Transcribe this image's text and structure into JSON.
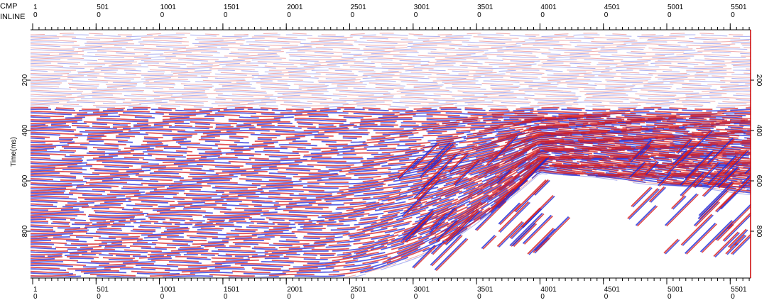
{
  "cmp_axis": {
    "label": "CMP",
    "ticks": [
      "1",
      "501",
      "1001",
      "1501",
      "2001",
      "2501",
      "3001",
      "3501",
      "4001",
      "4501",
      "5001",
      "5501"
    ]
  },
  "inline_axis": {
    "label": "INLINE",
    "ticks": [
      "0",
      "0",
      "0",
      "0",
      "0",
      "0",
      "0",
      "0",
      "0",
      "0",
      "0",
      "0"
    ]
  },
  "time_axis": {
    "label": "Time(ms)",
    "ticks": [
      "200",
      "400",
      "600",
      "800"
    ]
  }
}
